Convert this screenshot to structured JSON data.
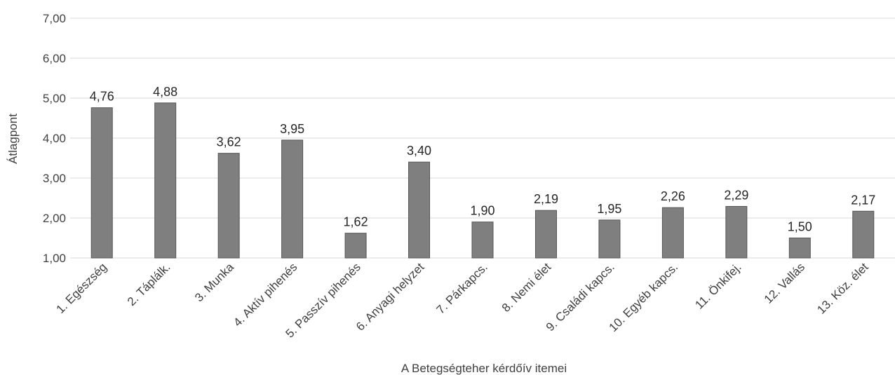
{
  "chart_data": {
    "type": "bar",
    "xlabel": "A Betegségteher kérdőív itemei",
    "ylabel": "Átlagpont",
    "ylim": [
      1,
      7
    ],
    "yticks": [
      "1,00",
      "2,00",
      "3,00",
      "4,00",
      "5,00",
      "6,00",
      "7,00"
    ],
    "grid": true,
    "categories": [
      "1. Egészség",
      "2. Táplálk.",
      "3. Munka",
      "4. Aktív pihenés",
      "5. Passzív pihenés",
      "6. Anyagi helyzet",
      "7. Párkapcs.",
      "8. Nemi élet",
      "9. Családi kapcs.",
      "10. Egyéb kapcs.",
      "11. Önkifej.",
      "12. Vallás",
      "13. Köz. élet"
    ],
    "values": [
      4.76,
      4.88,
      3.62,
      3.95,
      1.62,
      3.4,
      1.9,
      2.19,
      1.95,
      2.26,
      2.29,
      1.5,
      2.17
    ],
    "value_labels": [
      "4,76",
      "4,88",
      "3,62",
      "3,95",
      "1,62",
      "3,40",
      "1,90",
      "2,19",
      "1,95",
      "2,26",
      "2,29",
      "1,50",
      "2,17"
    ],
    "bar_color": "#7f7f80"
  }
}
